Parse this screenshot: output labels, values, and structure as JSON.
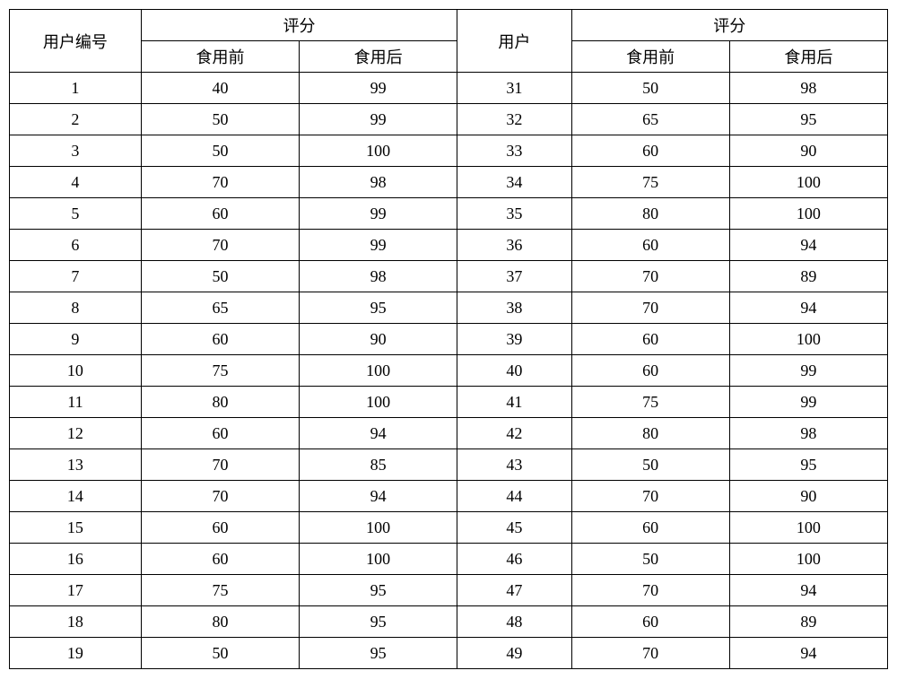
{
  "headers": {
    "user_id": "用户编号",
    "score": "评分",
    "before": "食用前",
    "after": "食用后",
    "user": "用户"
  },
  "colors": {
    "border": "#000000",
    "background": "#ffffff",
    "text": "#000000"
  },
  "col_widths_pct": [
    15,
    18,
    18,
    13,
    18,
    18
  ],
  "rows": [
    {
      "id": "1",
      "b1": "40",
      "a1": "99",
      "u2": "31",
      "b2": "50",
      "a2": "98"
    },
    {
      "id": "2",
      "b1": "50",
      "a1": "99",
      "u2": "32",
      "b2": "65",
      "a2": "95"
    },
    {
      "id": "3",
      "b1": "50",
      "a1": "100",
      "u2": "33",
      "b2": "60",
      "a2": "90"
    },
    {
      "id": "4",
      "b1": "70",
      "a1": "98",
      "u2": "34",
      "b2": "75",
      "a2": "100"
    },
    {
      "id": "5",
      "b1": "60",
      "a1": "99",
      "u2": "35",
      "b2": "80",
      "a2": "100"
    },
    {
      "id": "6",
      "b1": "70",
      "a1": "99",
      "u2": "36",
      "b2": "60",
      "a2": "94"
    },
    {
      "id": "7",
      "b1": "50",
      "a1": "98",
      "u2": "37",
      "b2": "70",
      "a2": "89"
    },
    {
      "id": "8",
      "b1": "65",
      "a1": "95",
      "u2": "38",
      "b2": "70",
      "a2": "94"
    },
    {
      "id": "9",
      "b1": "60",
      "a1": "90",
      "u2": "39",
      "b2": "60",
      "a2": "100"
    },
    {
      "id": "10",
      "b1": "75",
      "a1": "100",
      "u2": "40",
      "b2": "60",
      "a2": "99"
    },
    {
      "id": "11",
      "b1": "80",
      "a1": "100",
      "u2": "41",
      "b2": "75",
      "a2": "99"
    },
    {
      "id": "12",
      "b1": "60",
      "a1": "94",
      "u2": "42",
      "b2": "80",
      "a2": "98"
    },
    {
      "id": "13",
      "b1": "70",
      "a1": "85",
      "u2": "43",
      "b2": "50",
      "a2": "95"
    },
    {
      "id": "14",
      "b1": "70",
      "a1": "94",
      "u2": "44",
      "b2": "70",
      "a2": "90"
    },
    {
      "id": "15",
      "b1": "60",
      "a1": "100",
      "u2": "45",
      "b2": "60",
      "a2": "100"
    },
    {
      "id": "16",
      "b1": "60",
      "a1": "100",
      "u2": "46",
      "b2": "50",
      "a2": "100"
    },
    {
      "id": "17",
      "b1": "75",
      "a1": "95",
      "u2": "47",
      "b2": "70",
      "a2": "94"
    },
    {
      "id": "18",
      "b1": "80",
      "a1": "95",
      "u2": "48",
      "b2": "60",
      "a2": "89"
    },
    {
      "id": "19",
      "b1": "50",
      "a1": "95",
      "u2": "49",
      "b2": "70",
      "a2": "94"
    }
  ]
}
